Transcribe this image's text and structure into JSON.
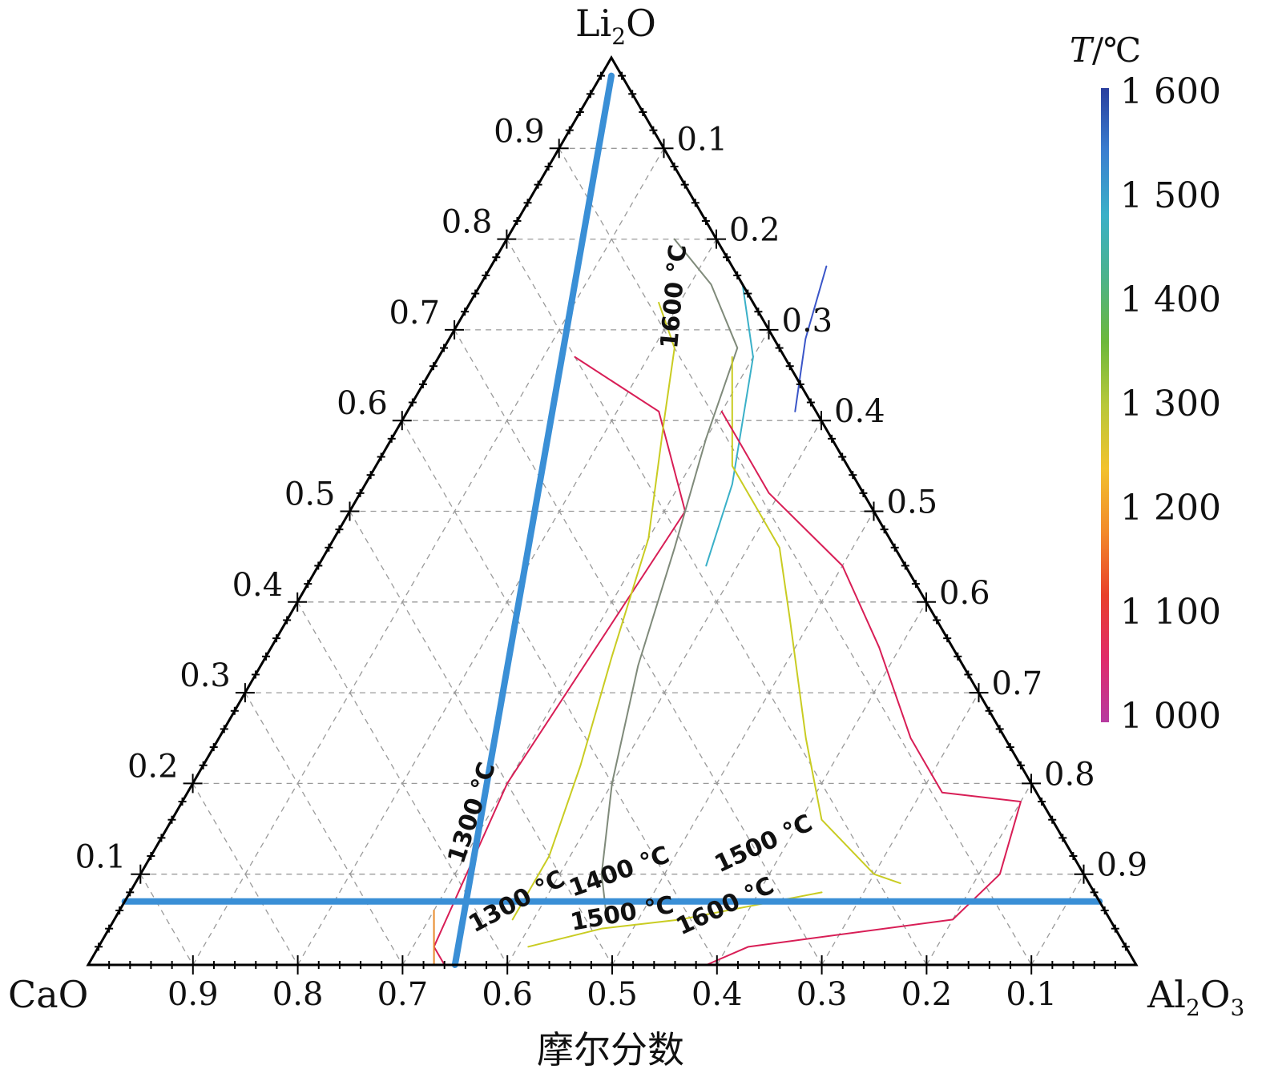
{
  "chart_data": {
    "type": "ternary",
    "vertices": {
      "top": {
        "base": "Li",
        "sub": "2",
        "rest": "O"
      },
      "left": {
        "base": "CaO",
        "sub": "",
        "rest": ""
      },
      "right": {
        "base": "Al",
        "sub": "2",
        "rest": "O",
        "sub2": "3"
      }
    },
    "axis_title": "摩尔分数",
    "left_ticks": [
      "0.1",
      "0.2",
      "0.3",
      "0.4",
      "0.5",
      "0.6",
      "0.7",
      "0.8",
      "0.9"
    ],
    "right_ticks": [
      "0.1",
      "0.2",
      "0.3",
      "0.4",
      "0.5",
      "0.6",
      "0.7",
      "0.8",
      "0.9"
    ],
    "bottom_ticks": [
      "0.9",
      "0.8",
      "0.7",
      "0.6",
      "0.5",
      "0.4",
      "0.3",
      "0.2",
      "0.1"
    ],
    "grid": true,
    "colorbar": {
      "title_italic": "T",
      "title_rest": "/℃",
      "ticks": [
        "1 600",
        "1 500",
        "1 400",
        "1 300",
        "1 200",
        "1 100",
        "1 000"
      ],
      "range": [
        1000,
        1600
      ],
      "colors": [
        "#2a3f9e",
        "#3b7fd0",
        "#3ab0c8",
        "#4cb38a",
        "#6cb83a",
        "#b8c83a",
        "#f2c22e",
        "#f28a2a",
        "#e8402a",
        "#e02a6a",
        "#b63aa0"
      ]
    },
    "contour_labels": [
      "1300 ℃",
      "1400 ℃",
      "1500 ℃",
      "1500 ℃",
      "1600 ℃",
      "1300 ℃",
      "1600 ℃"
    ],
    "contours": [
      {
        "t": 1100,
        "color": "#d81e56",
        "pts": [
          [
            0.13,
            0.67
          ],
          [
            0.24,
            0.61
          ],
          [
            0.32,
            0.5
          ],
          [
            0.3,
            0.2
          ],
          [
            0.32,
            0.02
          ],
          [
            0.34,
            0.0
          ]
        ]
      },
      {
        "t": 1200,
        "color": "#e88a2a",
        "pts": [
          [
            0.3,
            0.06
          ],
          [
            0.33,
            0.0
          ]
        ]
      },
      {
        "t": 1300,
        "color": "#c9cc22",
        "pts": [
          [
            0.18,
            0.73
          ],
          [
            0.22,
            0.68
          ],
          [
            0.25,
            0.6
          ],
          [
            0.3,
            0.47
          ],
          [
            0.33,
            0.34
          ],
          [
            0.36,
            0.22
          ],
          [
            0.38,
            0.12
          ],
          [
            0.38,
            0.05
          ]
        ]
      },
      {
        "t": 1400,
        "color": "#7f8a7a",
        "pts": [
          [
            0.16,
            0.8
          ],
          [
            0.22,
            0.75
          ],
          [
            0.28,
            0.68
          ],
          [
            0.3,
            0.58
          ],
          [
            0.33,
            0.46
          ],
          [
            0.36,
            0.33
          ],
          [
            0.4,
            0.2
          ],
          [
            0.44,
            0.1
          ],
          [
            0.47,
            0.05
          ]
        ]
      },
      {
        "t": 1500,
        "color": "#3ab0c8",
        "pts": [
          [
            0.25,
            0.75
          ],
          [
            0.3,
            0.67
          ],
          [
            0.35,
            0.53
          ],
          [
            0.37,
            0.44
          ]
        ]
      },
      {
        "t": 1600,
        "color": "#3a55c8",
        "pts": [
          [
            0.32,
            0.77
          ],
          [
            0.34,
            0.69
          ],
          [
            0.37,
            0.61
          ]
        ]
      },
      {
        "t": 1300,
        "color": "#c9cc22",
        "pts": [
          [
            0.28,
            0.67
          ],
          [
            0.34,
            0.55
          ],
          [
            0.43,
            0.46
          ],
          [
            0.48,
            0.38
          ],
          [
            0.56,
            0.25
          ],
          [
            0.62,
            0.16
          ],
          [
            0.7,
            0.1
          ],
          [
            0.73,
            0.09
          ]
        ]
      },
      {
        "t": 1100,
        "color": "#d81e56",
        "pts": [
          [
            0.3,
            0.61
          ],
          [
            0.39,
            0.52
          ],
          [
            0.5,
            0.44
          ],
          [
            0.58,
            0.35
          ],
          [
            0.66,
            0.25
          ],
          [
            0.72,
            0.19
          ],
          [
            0.8,
            0.18
          ],
          [
            0.82,
            0.1
          ],
          [
            0.8,
            0.05
          ],
          [
            0.62,
            0.02
          ],
          [
            0.59,
            0.0
          ]
        ]
      },
      {
        "t": 1500,
        "color": "#c9cc22",
        "pts": [
          [
            0.41,
            0.02
          ],
          [
            0.47,
            0.04
          ],
          [
            0.54,
            0.05
          ],
          [
            0.62,
            0.07
          ],
          [
            0.66,
            0.08
          ]
        ]
      }
    ],
    "overlay_lines": [
      {
        "from": [
          0.01,
          0.98
        ],
        "to": [
          0.35,
          0.0
        ]
      },
      {
        "from": [
          0.0,
          0.07
        ],
        "to": [
          0.93,
          0.07
        ]
      }
    ]
  }
}
